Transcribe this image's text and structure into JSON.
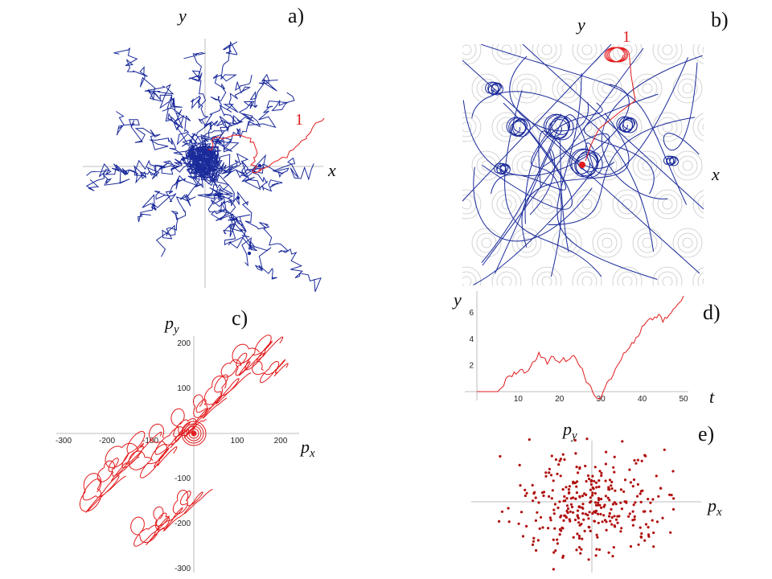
{
  "panels": {
    "a": {
      "letter": "a)",
      "x": "x",
      "y": "y",
      "red_tag": "1"
    },
    "b": {
      "letter": "b)",
      "x": "x",
      "y": "y",
      "red_tag": "1"
    },
    "c": {
      "letter": "c)",
      "x": "p",
      "x_sub": "x",
      "y": "p",
      "y_sub": "y"
    },
    "d": {
      "letter": "d)",
      "x": "t",
      "y": "y"
    },
    "e": {
      "letter": "e)",
      "x": "p",
      "x_sub": "x",
      "y": "p",
      "y_sub": "y"
    }
  },
  "chart_data": [
    {
      "panel": "a",
      "type": "line",
      "title": "",
      "description": "Random-walk trajectories in the (x, y) plane; blue paths, one highlighted red path labeled 1",
      "series": [
        {
          "name": "1",
          "color": "#e31a1c"
        },
        {
          "color": "#1a2a9a"
        }
      ],
      "xlabel": "x",
      "ylabel": "y",
      "grid": false
    },
    {
      "panel": "b",
      "type": "line",
      "title": "",
      "description": "Trajectories over a grey periodic potential contour background; blue paths with loops, red path labeled 1",
      "series": [
        {
          "name": "1",
          "color": "#e31a1c"
        },
        {
          "color": "#1a2a9a"
        }
      ],
      "xlabel": "x",
      "ylabel": "y",
      "grid": false
    },
    {
      "panel": "c",
      "type": "line",
      "title": "",
      "xlabel": "p_x",
      "ylabel": "p_y",
      "xlim": [
        -330,
        270
      ],
      "ylim": [
        -310,
        250
      ],
      "xticks": [
        -300,
        -200,
        -100,
        100,
        200
      ],
      "yticks": [
        200,
        100,
        -100,
        -200,
        -300
      ],
      "series": [
        {
          "color": "#e31a1c"
        }
      ],
      "grid": false
    },
    {
      "panel": "d",
      "type": "line",
      "title": "",
      "xlabel": "t",
      "ylabel": "y",
      "xlim": [
        0,
        52
      ],
      "ylim": [
        -0.7,
        7.5
      ],
      "xticks": [
        10,
        20,
        30,
        40,
        50
      ],
      "yticks": [
        2,
        4,
        6
      ],
      "series": [
        {
          "color": "#e31a1c",
          "x": [
            0,
            5,
            6,
            7,
            8,
            9,
            10,
            11,
            12,
            13,
            14,
            15,
            16,
            17,
            18,
            19,
            20,
            21,
            22,
            23,
            24,
            25,
            26,
            27,
            28,
            29,
            30,
            31,
            32,
            33,
            34,
            35,
            36,
            37,
            38,
            39,
            40,
            41,
            42,
            43,
            44,
            45,
            46,
            47,
            48,
            49,
            50
          ],
          "y": [
            0,
            0,
            0.3,
            1.0,
            1.2,
            1.5,
            1.5,
            1.7,
            1.5,
            1.9,
            2.3,
            3.0,
            2.6,
            2.1,
            2.7,
            2.4,
            2.2,
            2.6,
            2.4,
            2.7,
            2.5,
            1.9,
            1.2,
            0.6,
            0.0,
            -0.5,
            -0.5,
            0.3,
            0.9,
            1.3,
            2.0,
            2.5,
            3.0,
            3.4,
            3.7,
            4.2,
            5.0,
            5.3,
            5.6,
            5.7,
            5.9,
            5.3,
            5.6,
            6.0,
            6.4,
            6.8,
            7.3
          ]
        }
      ],
      "grid": false
    },
    {
      "panel": "e",
      "type": "scatter",
      "title": "",
      "xlabel": "p_x",
      "ylabel": "p_y",
      "series": [
        {
          "color": "#b01010",
          "points": 320
        }
      ],
      "grid": false
    }
  ]
}
